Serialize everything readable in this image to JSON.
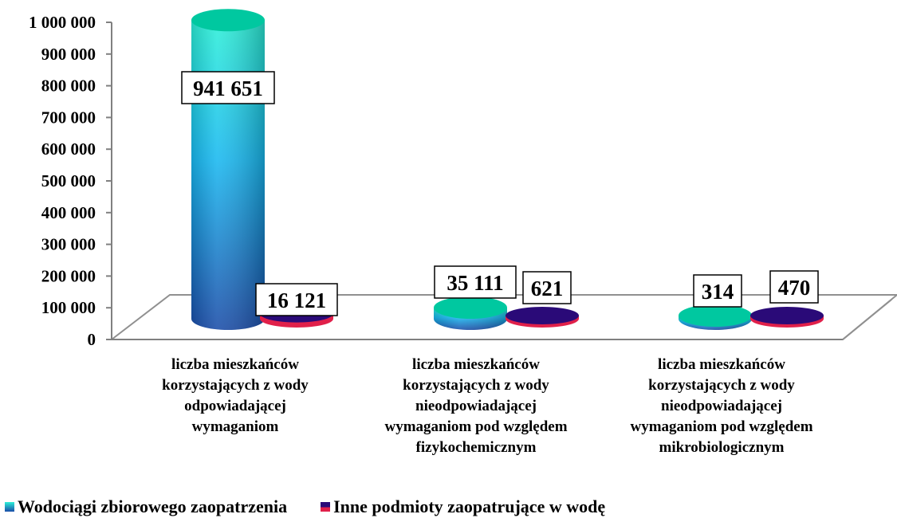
{
  "chart_data": {
    "type": "bar",
    "style": "3d-cylinder",
    "categories": [
      [
        "liczba mieszkańców",
        "korzystających z wody",
        "odpowiadającej",
        "wymaganiom"
      ],
      [
        "liczba mieszkańców",
        "korzystających z wody",
        "nieodpowiadającej",
        "wymaganiom pod względem",
        "fizykochemicznym"
      ],
      [
        "liczba mieszkańców",
        "korzystających z wody",
        "nieodpowiadającej",
        "wymaganiom pod względem",
        "mikrobiologicznym"
      ]
    ],
    "series": [
      {
        "name": "Wodociągi zbiorowego zaopatrzenia",
        "values": [
          941651,
          35111,
          314
        ],
        "value_labels": [
          "941 651",
          "35 111",
          "314"
        ],
        "color": "#18C0E8",
        "top_color": "#00C8A0",
        "dark_color": "#1A55A8"
      },
      {
        "name": "Inne podmioty zaopatrujące w wodę",
        "values": [
          16121,
          621,
          470
        ],
        "value_labels": [
          "16 121",
          "621",
          "470"
        ],
        "color": "#2A0A78",
        "top_color": "#2A0A78",
        "dark_color": "#E0204A"
      }
    ],
    "ylim": [
      0,
      1000000
    ],
    "yticks": [
      0,
      100000,
      200000,
      300000,
      400000,
      500000,
      600000,
      700000,
      800000,
      900000,
      1000000
    ],
    "ytick_labels": [
      "0",
      "100 000",
      "200 000",
      "300 000",
      "400 000",
      "500 000",
      "600 000",
      "700 000",
      "800 000",
      "900 000",
      "1 000 000"
    ],
    "grid": false,
    "legend_position": "bottom-left"
  }
}
